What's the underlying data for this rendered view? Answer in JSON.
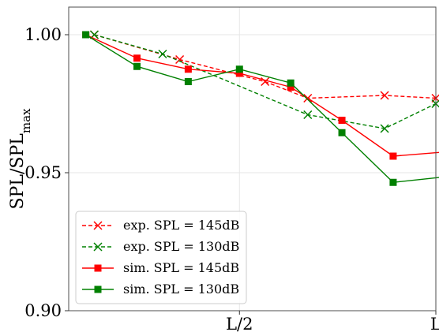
{
  "chart_data": {
    "type": "line",
    "title": "",
    "xlabel": "",
    "ylabel": "SPL/SPL",
    "ylabel_sub": "max",
    "xlim": [
      -0.5,
      10.25
    ],
    "ylim": [
      0.9,
      1.01
    ],
    "xticks": [
      {
        "value": 4.5,
        "label": "L/2"
      },
      {
        "value": 10.25,
        "label": "L"
      }
    ],
    "yticks": [
      {
        "value": 0.9,
        "label": "0.90"
      },
      {
        "value": 0.95,
        "label": "0.95"
      },
      {
        "value": 1.0,
        "label": "1.00"
      }
    ],
    "grid": true,
    "legend_position": "bottom-left",
    "series": [
      {
        "name": "exp. SPL = 145dB",
        "color": "#ff0000",
        "line": "dashed",
        "marker": "x",
        "x": [
          0.25,
          2.75,
          5.25,
          6.5,
          8.75,
          10.25
        ],
        "y": [
          1.0,
          0.991,
          0.983,
          0.977,
          0.978,
          0.977
        ]
      },
      {
        "name": "exp. SPL = 130dB",
        "color": "#008000",
        "line": "dashed",
        "marker": "x",
        "x": [
          0.25,
          2.25,
          6.5,
          8.75,
          10.25
        ],
        "y": [
          1.0,
          0.993,
          0.971,
          0.966,
          0.975
        ]
      },
      {
        "name": "sim. SPL = 145dB",
        "color": "#ff0000",
        "line": "solid",
        "marker": "square",
        "x": [
          0,
          1.5,
          3,
          4.5,
          6,
          7.5,
          9,
          10.5
        ],
        "y": [
          1.0,
          0.9915,
          0.9875,
          0.986,
          0.981,
          0.969,
          0.956,
          0.9575
        ]
      },
      {
        "name": "sim. SPL = 130dB",
        "color": "#008000",
        "line": "solid",
        "marker": "square",
        "x": [
          0,
          1.5,
          3,
          4.5,
          6,
          7.5,
          9,
          10.5
        ],
        "y": [
          1.0,
          0.9885,
          0.983,
          0.9875,
          0.9825,
          0.9645,
          0.9465,
          0.9485
        ]
      }
    ]
  }
}
